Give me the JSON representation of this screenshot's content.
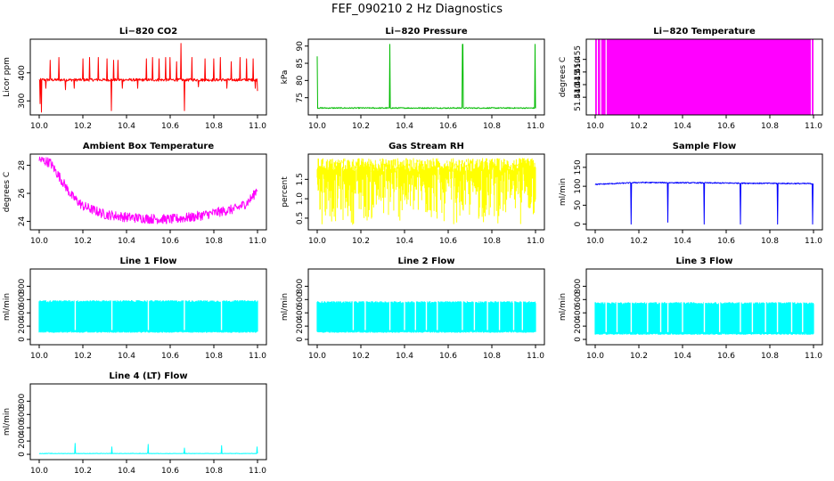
{
  "figure_title": "FEF_090210  2 Hz Diagnostics",
  "chart_data": [
    {
      "key": "co2",
      "type": "line",
      "title": "Li−820 CO2",
      "ylabel": "Licor ppm",
      "color": "#ff0000",
      "xlim": [
        10.0,
        11.0
      ],
      "ylim": [
        250,
        520
      ],
      "yticks": [
        300,
        400
      ],
      "ytick_labels": [
        "300",
        "400"
      ],
      "xticks": [
        10.0,
        10.2,
        10.4,
        10.6,
        10.8,
        11.0
      ],
      "xtick_labels": [
        "10.0",
        "10.2",
        "10.4",
        "10.6",
        "10.8",
        "11.0"
      ],
      "gen": {
        "mode": "baseline_noise",
        "base": 375,
        "noise": 5,
        "drift": [],
        "spikes": [
          [
            10.005,
            290
          ],
          [
            10.01,
            260
          ],
          [
            10.03,
            345
          ],
          [
            10.05,
            445
          ],
          [
            10.09,
            455
          ],
          [
            10.12,
            340
          ],
          [
            10.16,
            345
          ],
          [
            10.2,
            450
          ],
          [
            10.23,
            455
          ],
          [
            10.27,
            455
          ],
          [
            10.31,
            450
          ],
          [
            10.33,
            265
          ],
          [
            10.34,
            445
          ],
          [
            10.36,
            445
          ],
          [
            10.38,
            345
          ],
          [
            10.45,
            345
          ],
          [
            10.49,
            450
          ],
          [
            10.52,
            455
          ],
          [
            10.55,
            450
          ],
          [
            10.58,
            455
          ],
          [
            10.6,
            455
          ],
          [
            10.63,
            440
          ],
          [
            10.65,
            505
          ],
          [
            10.665,
            265
          ],
          [
            10.7,
            455
          ],
          [
            10.73,
            350
          ],
          [
            10.76,
            450
          ],
          [
            10.8,
            450
          ],
          [
            10.83,
            455
          ],
          [
            10.86,
            345
          ],
          [
            10.88,
            440
          ],
          [
            10.92,
            455
          ],
          [
            10.95,
            450
          ],
          [
            10.98,
            450
          ],
          [
            10.99,
            345
          ],
          [
            11.0,
            335
          ]
        ]
      }
    },
    {
      "key": "pressure",
      "type": "line",
      "title": "Li−820 Pressure",
      "ylabel": "kPa",
      "color": "#00bb00",
      "xlim": [
        10.0,
        11.0
      ],
      "ylim": [
        70,
        92
      ],
      "yticks": [
        75,
        80,
        85,
        90
      ],
      "ytick_labels": [
        "75",
        "80",
        "85",
        "90"
      ],
      "xticks": [
        10.0,
        10.2,
        10.4,
        10.6,
        10.8,
        11.0
      ],
      "xtick_labels": [
        "10.0",
        "10.2",
        "10.4",
        "10.6",
        "10.8",
        "11.0"
      ],
      "gen": {
        "mode": "baseline_noise",
        "base": 72,
        "noise": 0.15,
        "drift": [],
        "spikes": [
          [
            10.0,
            87
          ],
          [
            10.333,
            90.5
          ],
          [
            10.665,
            90.5
          ],
          [
            10.667,
            90.5
          ],
          [
            10.998,
            90.5
          ]
        ]
      }
    },
    {
      "key": "litemp",
      "type": "fill",
      "title": "Li−820 Temperature",
      "ylabel": "degrees C",
      "color": "#ff00ff",
      "xlim": [
        10.0,
        11.0
      ],
      "ylim": [
        51.433,
        51.463
      ],
      "yticks": [
        51.44,
        51.445,
        51.45,
        51.455
      ],
      "ytick_labels": [
        "51.440",
        "51.445",
        "51.450",
        "51.455"
      ],
      "xticks": [
        10.0,
        10.2,
        10.4,
        10.6,
        10.8,
        11.0
      ],
      "xtick_labels": [
        "10.0",
        "10.2",
        "10.4",
        "10.6",
        "10.8",
        "11.0"
      ],
      "gen": {
        "mode": "band",
        "x_range": [
          10.0,
          11.0
        ],
        "low": 51.433,
        "high": 51.463,
        "gaps": [
          10.01,
          10.025,
          10.05,
          10.99
        ]
      }
    },
    {
      "key": "boxtemp",
      "type": "line",
      "title": "Ambient Box Temperature",
      "ylabel": "degrees C",
      "color": "#ff00ff",
      "xlim": [
        10.0,
        11.0
      ],
      "ylim": [
        23.4,
        28.8
      ],
      "yticks": [
        24,
        26,
        28
      ],
      "ytick_labels": [
        "24",
        "26",
        "28"
      ],
      "xticks": [
        10.0,
        10.2,
        10.4,
        10.6,
        10.8,
        11.0
      ],
      "xtick_labels": [
        "10.0",
        "10.2",
        "10.4",
        "10.6",
        "10.8",
        "11.0"
      ],
      "gen": {
        "mode": "curve_noise",
        "noise": 0.35,
        "curve": [
          [
            10.0,
            28.4
          ],
          [
            10.05,
            28.2
          ],
          [
            10.1,
            27.0
          ],
          [
            10.15,
            25.8
          ],
          [
            10.2,
            25.1
          ],
          [
            10.3,
            24.5
          ],
          [
            10.4,
            24.3
          ],
          [
            10.5,
            24.2
          ],
          [
            10.6,
            24.15
          ],
          [
            10.7,
            24.3
          ],
          [
            10.8,
            24.6
          ],
          [
            10.9,
            24.9
          ],
          [
            10.95,
            25.3
          ],
          [
            10.98,
            25.8
          ],
          [
            11.0,
            26.4
          ]
        ]
      }
    },
    {
      "key": "rh",
      "type": "line",
      "title": "Gas Stream RH",
      "ylabel": "percent",
      "color": "#ffff00",
      "xlim": [
        10.0,
        11.0
      ],
      "ylim": [
        0.2,
        2.15
      ],
      "yticks": [
        0.5,
        1.0,
        1.5
      ],
      "ytick_labels": [
        "0.5",
        "1.0",
        "1.5"
      ],
      "xticks": [
        10.0,
        10.2,
        10.4,
        10.6,
        10.8,
        11.0
      ],
      "xtick_labels": [
        "10.0",
        "10.2",
        "10.4",
        "10.6",
        "10.8",
        "11.0"
      ],
      "gen": {
        "mode": "random_band",
        "low": 0.3,
        "high": 2.05,
        "top_min": 1.7
      }
    },
    {
      "key": "sampleflow",
      "type": "line",
      "title": "Sample Flow",
      "ylabel": "ml/min",
      "color": "#0000ff",
      "xlim": [
        10.0,
        11.0
      ],
      "ylim": [
        -15,
        185
      ],
      "yticks": [
        0,
        50,
        100,
        150
      ],
      "ytick_labels": [
        "0",
        "50",
        "100",
        "150"
      ],
      "xticks": [
        10.0,
        10.2,
        10.4,
        10.6,
        10.8,
        11.0
      ],
      "xtick_labels": [
        "10.0",
        "10.2",
        "10.4",
        "10.6",
        "10.8",
        "11.0"
      ],
      "gen": {
        "mode": "baseline_noise",
        "base": 107,
        "noise": 1.5,
        "drift": [
          [
            10.0,
            -2
          ],
          [
            10.2,
            3
          ],
          [
            11.0,
            0
          ]
        ],
        "spikes": [
          [
            10.165,
            0
          ],
          [
            10.333,
            5
          ],
          [
            10.5,
            0
          ],
          [
            10.665,
            0
          ],
          [
            10.835,
            0
          ],
          [
            10.995,
            0
          ]
        ]
      }
    },
    {
      "key": "line1",
      "type": "line",
      "title": "Line 1 Flow",
      "ylabel": "ml/min",
      "color": "#00ffff",
      "xlim": [
        10.0,
        11.0
      ],
      "ylim": [
        -80,
        1060
      ],
      "yticks": [
        0,
        200,
        400,
        600,
        800
      ],
      "ytick_labels": [
        "0",
        "200",
        "400",
        "600",
        "800"
      ],
      "xticks": [
        10.0,
        10.2,
        10.4,
        10.6,
        10.8,
        11.0
      ],
      "xtick_labels": [
        "10.0",
        "10.2",
        "10.4",
        "10.6",
        "10.8",
        "11.0"
      ],
      "gen": {
        "mode": "switch_band",
        "low": 110,
        "high": 575,
        "gaps": [
          10.165,
          10.333,
          10.5,
          10.665,
          10.835
        ]
      }
    },
    {
      "key": "line2",
      "type": "line",
      "title": "Line 2 Flow",
      "ylabel": "ml/min",
      "color": "#00ffff",
      "xlim": [
        10.0,
        11.0
      ],
      "ylim": [
        -80,
        1060
      ],
      "yticks": [
        0,
        200,
        400,
        600,
        800
      ],
      "ytick_labels": [
        "0",
        "200",
        "400",
        "600",
        "800"
      ],
      "xticks": [
        10.0,
        10.2,
        10.4,
        10.6,
        10.8,
        11.0
      ],
      "xtick_labels": [
        "10.0",
        "10.2",
        "10.4",
        "10.6",
        "10.8",
        "11.0"
      ],
      "gen": {
        "mode": "switch_band",
        "low": 110,
        "high": 560,
        "gaps": [
          10.165,
          10.22,
          10.333,
          10.4,
          10.45,
          10.5,
          10.55,
          10.665,
          10.72,
          10.78,
          10.835,
          10.9,
          10.94
        ]
      }
    },
    {
      "key": "line3",
      "type": "line",
      "title": "Line 3 Flow",
      "ylabel": "ml/min",
      "color": "#00ffff",
      "xlim": [
        10.0,
        11.0
      ],
      "ylim": [
        -80,
        1060
      ],
      "yticks": [
        0,
        200,
        400,
        600,
        800
      ],
      "ytick_labels": [
        "0",
        "200",
        "400",
        "600",
        "800"
      ],
      "xticks": [
        10.0,
        10.2,
        10.4,
        10.6,
        10.8,
        11.0
      ],
      "xtick_labels": [
        "10.0",
        "10.2",
        "10.4",
        "10.6",
        "10.8",
        "11.0"
      ],
      "gen": {
        "mode": "switch_band",
        "low": 80,
        "high": 545,
        "gaps": [
          10.05,
          10.1,
          10.165,
          10.24,
          10.3,
          10.333,
          10.4,
          10.5,
          10.57,
          10.665,
          10.72,
          10.78,
          10.835,
          10.9,
          10.95
        ]
      }
    },
    {
      "key": "line4",
      "type": "line",
      "title": "Line 4 (LT) Flow",
      "ylabel": "ml/min",
      "color": "#00ffff",
      "xlim": [
        10.0,
        11.0
      ],
      "ylim": [
        -80,
        1060
      ],
      "yticks": [
        0,
        200,
        400,
        600,
        800
      ],
      "ytick_labels": [
        "0",
        "200",
        "400",
        "600",
        "800"
      ],
      "xticks": [
        10.0,
        10.2,
        10.4,
        10.6,
        10.8,
        11.0
      ],
      "xtick_labels": [
        "10.0",
        "10.2",
        "10.4",
        "10.6",
        "10.8",
        "11.0"
      ],
      "gen": {
        "mode": "baseline_noise",
        "base": 12,
        "noise": 3,
        "drift": [],
        "spikes": [
          [
            10.165,
            165
          ],
          [
            10.333,
            110
          ],
          [
            10.5,
            150
          ],
          [
            10.665,
            95
          ],
          [
            10.835,
            130
          ],
          [
            10.998,
            110
          ]
        ]
      }
    }
  ]
}
